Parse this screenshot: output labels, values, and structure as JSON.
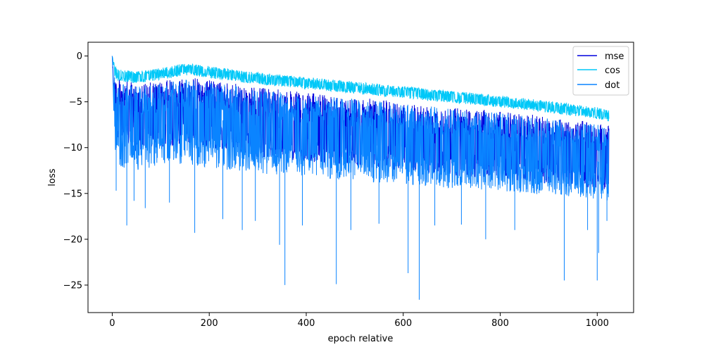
{
  "chart_data": {
    "type": "line",
    "title": "",
    "xlabel": "epoch relative",
    "ylabel": "loss",
    "xlim": [
      -50,
      1075
    ],
    "ylim": [
      -28,
      1.5
    ],
    "xticks": [
      0,
      200,
      400,
      600,
      800,
      1000
    ],
    "yticks": [
      0,
      -5,
      -10,
      -15,
      -20,
      -25
    ],
    "xtick_labels": [
      "0",
      "200",
      "400",
      "600",
      "800",
      "1000"
    ],
    "ytick_labels": [
      "0",
      "−5",
      "−10",
      "−15",
      "−20",
      "−25"
    ],
    "legend": {
      "placement": "upper-right"
    },
    "grid": false,
    "series": [
      {
        "name": "mse",
        "color": "#0000dd",
        "x": [
          0,
          5,
          10,
          50,
          100,
          150,
          200,
          300,
          400,
          500,
          600,
          700,
          800,
          900,
          1000,
          1024
        ],
        "upper": [
          0,
          -2,
          -2.5,
          -3.0,
          -2.8,
          -2.2,
          -2.6,
          -3.4,
          -4.0,
          -4.5,
          -5.0,
          -5.5,
          -6.0,
          -6.6,
          -7.3,
          -7.6
        ],
        "lower": [
          0,
          -8,
          -9,
          -10.5,
          -10.0,
          -9.5,
          -10.0,
          -11.0,
          -11.5,
          -12.0,
          -12.5,
          -13.0,
          -13.5,
          -14.0,
          -14.5,
          -14.6
        ]
      },
      {
        "name": "cos",
        "color": "#00c8f8",
        "x": [
          0,
          5,
          10,
          50,
          100,
          150,
          200,
          300,
          400,
          500,
          600,
          700,
          800,
          900,
          1000,
          1024
        ],
        "upper": [
          0,
          -1.0,
          -1.4,
          -1.7,
          -1.3,
          -0.8,
          -1.1,
          -1.8,
          -2.3,
          -2.8,
          -3.3,
          -3.8,
          -4.3,
          -4.9,
          -5.6,
          -5.9
        ],
        "lower": [
          0,
          -2.4,
          -2.7,
          -3.0,
          -2.6,
          -2.1,
          -2.4,
          -3.1,
          -3.6,
          -4.1,
          -4.6,
          -5.1,
          -5.6,
          -6.2,
          -6.9,
          -7.2
        ]
      },
      {
        "name": "dot",
        "color": "#0a84ff",
        "x": [
          0,
          5,
          10,
          50,
          100,
          150,
          200,
          300,
          400,
          500,
          600,
          700,
          800,
          900,
          1000,
          1024
        ],
        "upper": [
          0,
          -2.5,
          -3.0,
          -3.3,
          -3.0,
          -2.5,
          -2.8,
          -3.6,
          -4.2,
          -4.7,
          -5.2,
          -5.7,
          -6.2,
          -6.8,
          -7.5,
          -7.8
        ],
        "lower": [
          0,
          -10,
          -12,
          -12.5,
          -12.0,
          -11.8,
          -12.2,
          -12.8,
          -13.2,
          -13.6,
          -14.0,
          -14.4,
          -14.8,
          -15.2,
          -15.6,
          -15.8
        ],
        "spikes": [
          {
            "x": 8,
            "y": -14.7
          },
          {
            "x": 30,
            "y": -18.5
          },
          {
            "x": 45,
            "y": -15.8
          },
          {
            "x": 68,
            "y": -16.6
          },
          {
            "x": 118,
            "y": -16.0
          },
          {
            "x": 170,
            "y": -19.3
          },
          {
            "x": 228,
            "y": -17.8
          },
          {
            "x": 268,
            "y": -19.0
          },
          {
            "x": 295,
            "y": -18.0
          },
          {
            "x": 345,
            "y": -20.6
          },
          {
            "x": 356,
            "y": -25.0
          },
          {
            "x": 392,
            "y": -18.5
          },
          {
            "x": 462,
            "y": -24.9
          },
          {
            "x": 492,
            "y": -19.0
          },
          {
            "x": 550,
            "y": -18.3
          },
          {
            "x": 610,
            "y": -23.7
          },
          {
            "x": 633,
            "y": -26.6
          },
          {
            "x": 665,
            "y": -18.5
          },
          {
            "x": 720,
            "y": -18.4
          },
          {
            "x": 770,
            "y": -20.0
          },
          {
            "x": 830,
            "y": -19.0
          },
          {
            "x": 932,
            "y": -24.5
          },
          {
            "x": 980,
            "y": -19.0
          },
          {
            "x": 1000,
            "y": -24.5
          },
          {
            "x": 1003,
            "y": -21.5
          },
          {
            "x": 1020,
            "y": -18.0
          }
        ]
      }
    ]
  }
}
